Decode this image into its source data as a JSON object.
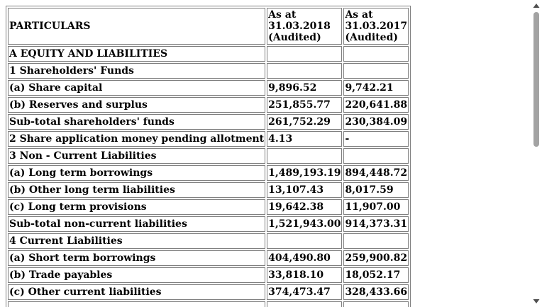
{
  "table": {
    "header": {
      "particulars": "PARTICULARS",
      "col1": [
        "As at",
        "31.03.2018",
        "(Audited)"
      ],
      "col2": [
        "As at",
        "31.03.2017",
        "(Audited)"
      ]
    },
    "rows": [
      {
        "label": "A EQUITY AND LIABILITIES",
        "v1": "",
        "v2": ""
      },
      {
        "label": "1 Shareholders' Funds",
        "v1": "",
        "v2": ""
      },
      {
        "label": "(a) Share capital",
        "v1": "9,896.52",
        "v2": "9,742.21"
      },
      {
        "label": "(b) Reserves and surplus",
        "v1": "251,855.77",
        "v2": "220,641.88"
      },
      {
        "label": "Sub-total shareholders' funds",
        "v1": "261,752.29",
        "v2": "230,384.09"
      },
      {
        "label": "2 Share application money pending allotment",
        "v1": "4.13",
        "v2": "-"
      },
      {
        "label": "3 Non - Current Liabilities",
        "v1": "",
        "v2": ""
      },
      {
        "label": "(a) Long term borrowings",
        "v1": "1,489,193.19",
        "v2": "894,448.72"
      },
      {
        "label": "(b) Other long term liabilities",
        "v1": "13,107.43",
        "v2": "8,017.59"
      },
      {
        "label": "(c) Long term provisions",
        "v1": "19,642.38",
        "v2": "11,907.00"
      },
      {
        "label": "Sub-total non-current liabilities",
        "v1": "1,521,943.00",
        "v2": "914,373.31"
      },
      {
        "label": "4 Current Liabilities",
        "v1": "",
        "v2": ""
      },
      {
        "label": "(a) Short term borrowings",
        "v1": "404,490.80",
        "v2": "259,900.82"
      },
      {
        "label": "(b) Trade payables",
        "v1": "33,818.10",
        "v2": "18,052.17"
      },
      {
        "label": "(c) Other current liabilities",
        "v1": "374,473.47",
        "v2": "328,433.66"
      },
      {
        "label": "",
        "v1": "",
        "v2": ""
      }
    ]
  },
  "scrollbar": {
    "up_icon": "arrow-up-icon",
    "down_icon": "arrow-down-icon",
    "thumb_color": "#a3a3a3",
    "arrow_color": "#505050"
  }
}
